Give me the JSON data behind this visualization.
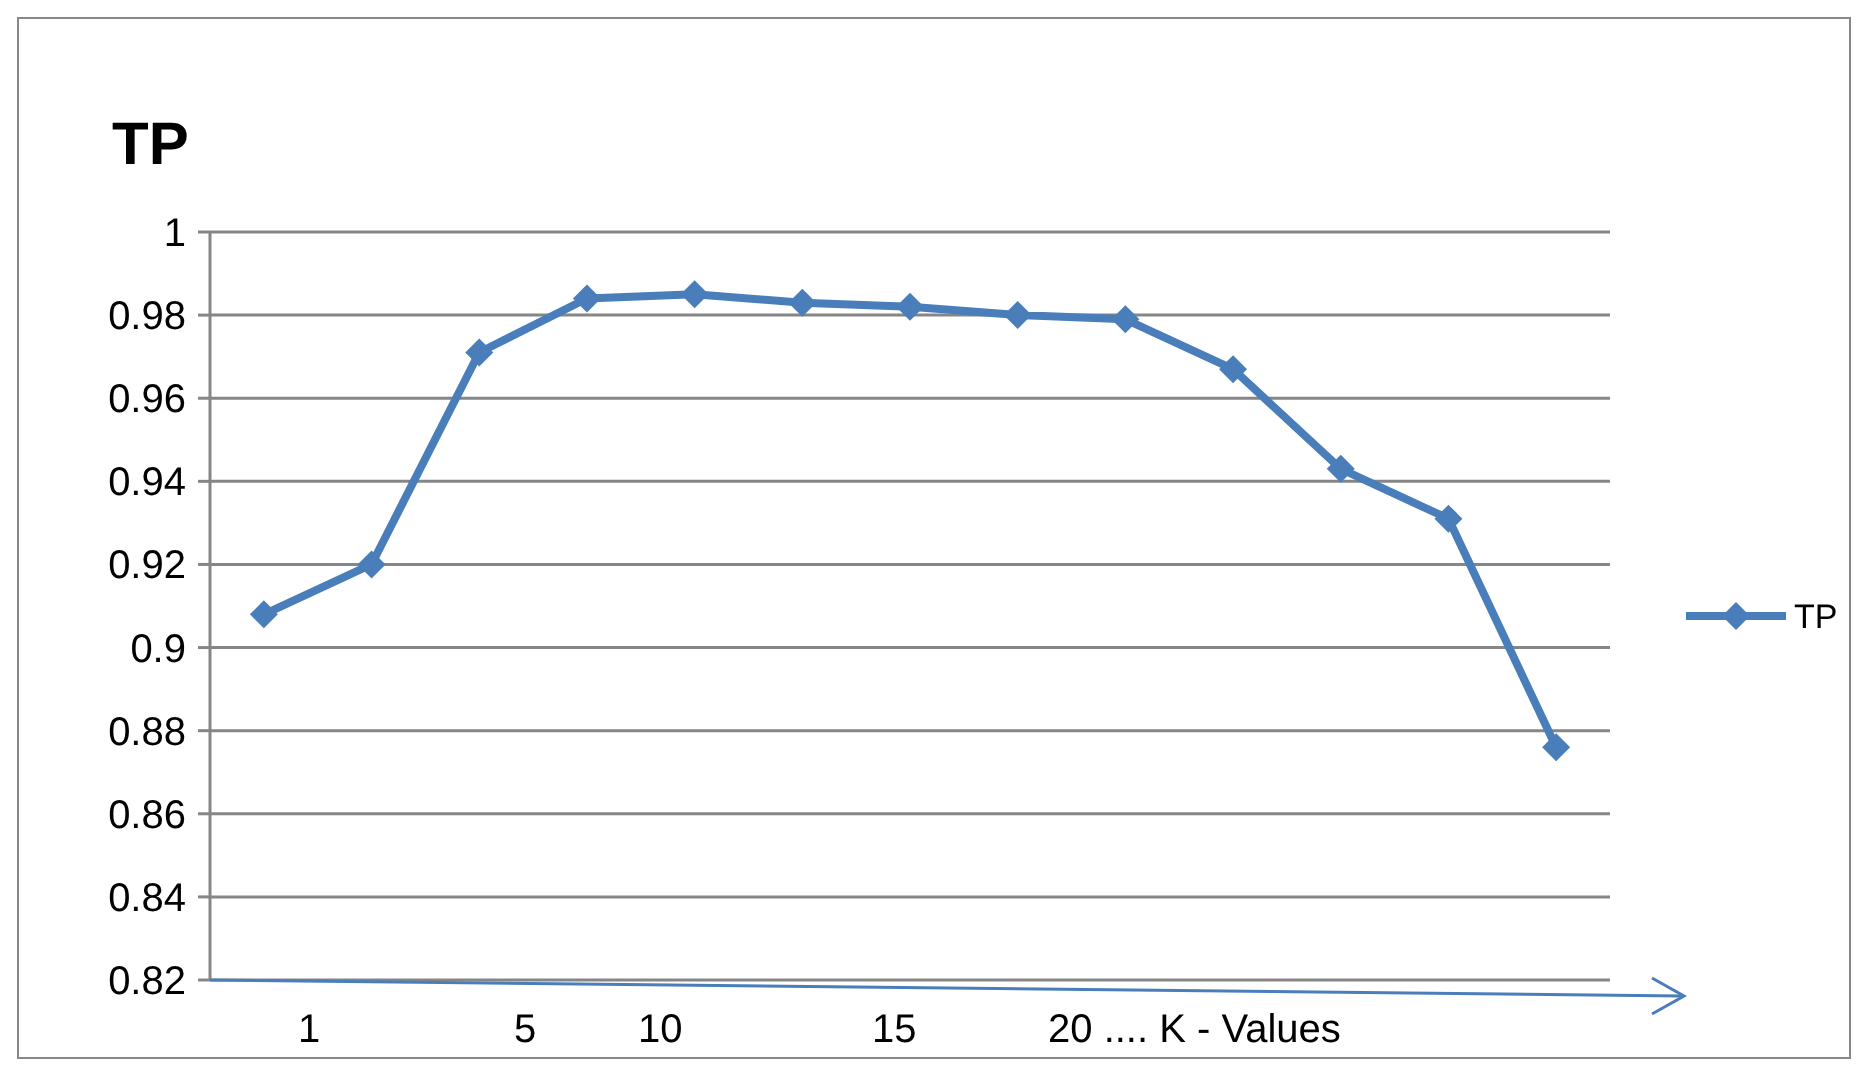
{
  "chart_data": {
    "type": "line",
    "title": "TP",
    "categories": [
      null,
      null,
      null,
      null,
      null,
      null,
      null,
      null,
      null,
      null,
      null,
      null,
      null
    ],
    "series": [
      {
        "name": "TP",
        "color": "#4a7ebb",
        "values": [
          0.908,
          0.92,
          0.971,
          0.984,
          0.985,
          0.983,
          0.982,
          0.98,
          0.979,
          0.967,
          0.943,
          0.931,
          0.876
        ]
      }
    ],
    "ylim": [
      0.82,
      1
    ],
    "yticks": [
      0.82,
      0.84,
      0.86,
      0.88,
      0.9,
      0.92,
      0.94,
      0.96,
      0.98,
      1
    ],
    "grid": "y",
    "legend": "right",
    "marker": "diamond",
    "line_style": "solid",
    "xlabel": "1 5 10 15 20 .... K - Values"
  }
}
